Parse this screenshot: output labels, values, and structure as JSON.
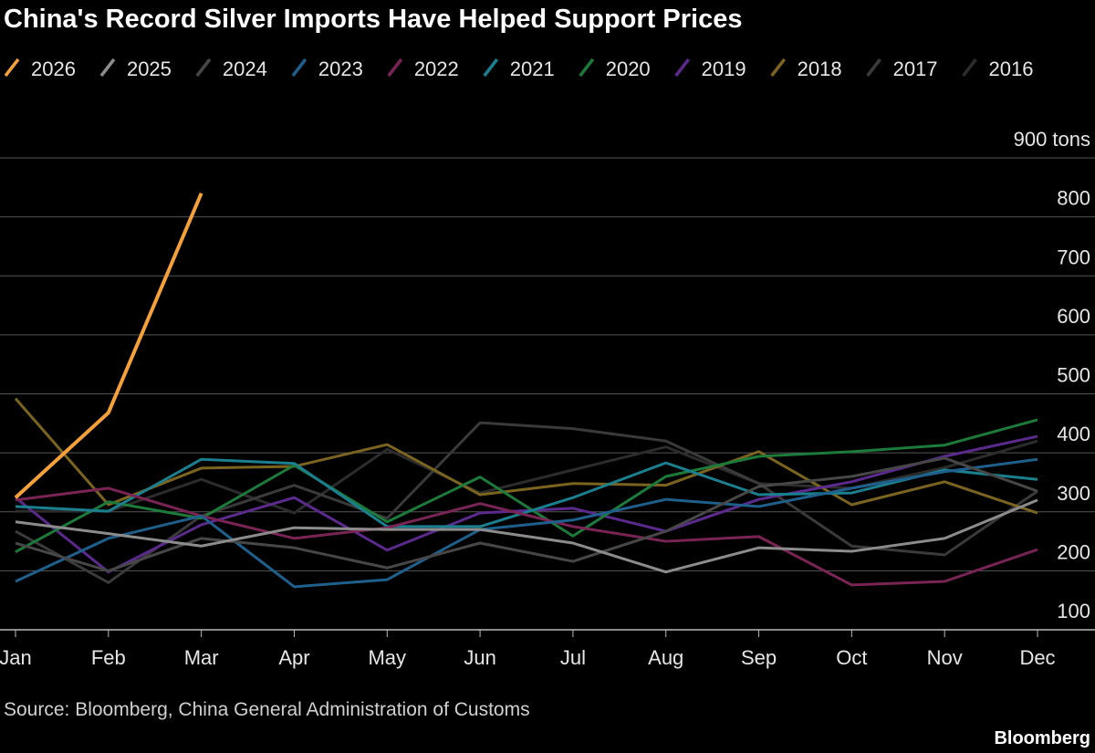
{
  "chart_data": {
    "type": "line",
    "title": "China's Record Silver Imports Have Helped Support Prices",
    "categories": [
      "Jan",
      "Feb",
      "Mar",
      "Apr",
      "May",
      "Jun",
      "Jul",
      "Aug",
      "Sep",
      "Oct",
      "Nov",
      "Dec"
    ],
    "series": [
      {
        "name": "2026",
        "color": "#f5a13a",
        "values": [
          324,
          468,
          840,
          null,
          null,
          null,
          null,
          null,
          null,
          null,
          null,
          null
        ]
      },
      {
        "name": "2025",
        "color": "#8c8c8c",
        "values": [
          283,
          263,
          242,
          273,
          270,
          270,
          247,
          198,
          239,
          233,
          255,
          320
        ]
      },
      {
        "name": "2024",
        "color": "#474747",
        "values": [
          247,
          200,
          255,
          239,
          205,
          247,
          216,
          267,
          343,
          360,
          391,
          335
        ]
      },
      {
        "name": "2023",
        "color": "#1f5f8b",
        "values": [
          182,
          255,
          293,
          173,
          185,
          270,
          286,
          321,
          309,
          340,
          368,
          389
        ]
      },
      {
        "name": "2022",
        "color": "#7a2455",
        "values": [
          320,
          340,
          293,
          255,
          273,
          314,
          275,
          250,
          258,
          176,
          182,
          236
        ]
      },
      {
        "name": "2021",
        "color": "#1a7f8e",
        "values": [
          309,
          301,
          389,
          382,
          275,
          275,
          324,
          383,
          329,
          332,
          371,
          355
        ]
      },
      {
        "name": "2020",
        "color": "#1c7a3a",
        "values": [
          232,
          317,
          289,
          379,
          283,
          359,
          259,
          360,
          394,
          402,
          413,
          456
        ]
      },
      {
        "name": "2019",
        "color": "#5b2a8c",
        "values": [
          324,
          198,
          278,
          324,
          235,
          298,
          306,
          267,
          321,
          351,
          394,
          428
        ]
      },
      {
        "name": "2018",
        "color": "#7a6420",
        "values": [
          492,
          312,
          374,
          377,
          414,
          329,
          348,
          345,
          402,
          312,
          351,
          298
        ]
      },
      {
        "name": "2017",
        "color": "#3a3a3a",
        "values": [
          267,
          180,
          293,
          345,
          289,
          451,
          441,
          420,
          348,
          242,
          227,
          335
        ]
      },
      {
        "name": "2016",
        "color": "#2c2c2c",
        "values": [
          301,
          301,
          355,
          298,
          406,
          332,
          371,
          410,
          348,
          340,
          375,
          420
        ]
      }
    ],
    "ylim": [
      100,
      900
    ],
    "yticks": [
      {
        "value": 900,
        "label": "900 tons"
      },
      800,
      700,
      600,
      500,
      400,
      300,
      200,
      100
    ],
    "grid": true,
    "legend": "top",
    "source": "Source: Bloomberg, China General Administration of Customs",
    "brand": "Bloomberg"
  }
}
